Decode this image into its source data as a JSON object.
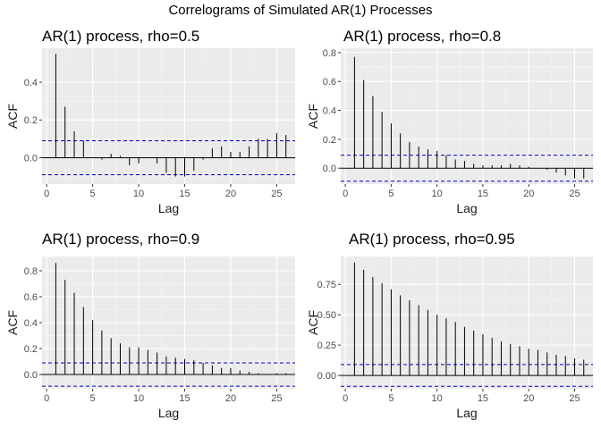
{
  "figure": {
    "title": "Correlograms of Simulated AR(1) Processes"
  },
  "chart_data": [
    {
      "type": "bar",
      "title": "AR(1) process, rho=0.5",
      "xlabel": "Lag",
      "ylabel": "ACF",
      "x": [
        1,
        2,
        3,
        4,
        5,
        6,
        7,
        8,
        9,
        10,
        11,
        12,
        13,
        14,
        15,
        16,
        17,
        18,
        19,
        20,
        21,
        22,
        23,
        24,
        25,
        26
      ],
      "values": [
        0.55,
        0.27,
        0.14,
        0.09,
        0.0,
        -0.01,
        0.02,
        0.01,
        -0.04,
        -0.03,
        0.0,
        -0.03,
        -0.08,
        -0.1,
        -0.1,
        -0.07,
        -0.01,
        0.05,
        0.06,
        0.03,
        0.03,
        0.06,
        0.1,
        0.1,
        0.13,
        0.12
      ],
      "confidence_band": 0.09,
      "xlim": [
        -0.5,
        27
      ],
      "ylim": [
        -0.14,
        0.58
      ],
      "xticks": [
        0,
        5,
        10,
        15,
        20,
        25
      ],
      "yticks": [
        0.0,
        0.2,
        0.4
      ],
      "ytick_labels": [
        "0.0",
        "0.2",
        "0.4"
      ],
      "grid": true
    },
    {
      "type": "bar",
      "title": "AR(1) process, rho=0.8",
      "xlabel": "Lag",
      "ylabel": "ACF",
      "x": [
        1,
        2,
        3,
        4,
        5,
        6,
        7,
        8,
        9,
        10,
        11,
        12,
        13,
        14,
        15,
        16,
        17,
        18,
        19,
        20,
        21,
        22,
        23,
        24,
        25,
        26
      ],
      "values": [
        0.77,
        0.61,
        0.5,
        0.39,
        0.31,
        0.24,
        0.18,
        0.15,
        0.13,
        0.12,
        0.09,
        0.06,
        0.05,
        0.03,
        0.02,
        0.02,
        0.02,
        0.03,
        0.02,
        0.01,
        0.0,
        -0.01,
        -0.03,
        -0.05,
        -0.07,
        -0.07
      ],
      "confidence_band": 0.09,
      "xlim": [
        -0.5,
        27
      ],
      "ylim": [
        -0.11,
        0.83
      ],
      "xticks": [
        0,
        5,
        10,
        15,
        20,
        25
      ],
      "yticks": [
        0.0,
        0.2,
        0.4,
        0.6,
        0.8
      ],
      "ytick_labels": [
        "0.0",
        "0.2",
        "0.4",
        "0.6",
        "0.8"
      ],
      "grid": true
    },
    {
      "type": "bar",
      "title": "AR(1) process, rho=0.9",
      "xlabel": "Lag",
      "ylabel": "ACF",
      "x": [
        1,
        2,
        3,
        4,
        5,
        6,
        7,
        8,
        9,
        10,
        11,
        12,
        13,
        14,
        15,
        16,
        17,
        18,
        19,
        20,
        21,
        22,
        23,
        24,
        25,
        26
      ],
      "values": [
        0.86,
        0.73,
        0.63,
        0.52,
        0.42,
        0.34,
        0.28,
        0.24,
        0.21,
        0.21,
        0.19,
        0.17,
        0.14,
        0.13,
        0.12,
        0.11,
        0.09,
        0.07,
        0.05,
        0.05,
        0.03,
        0.02,
        0.01,
        0.0,
        0.01,
        0.01
      ],
      "confidence_band": 0.09,
      "xlim": [
        -0.5,
        27
      ],
      "ylim": [
        -0.11,
        0.91
      ],
      "xticks": [
        0,
        5,
        10,
        15,
        20,
        25
      ],
      "yticks": [
        0.0,
        0.2,
        0.4,
        0.6,
        0.8
      ],
      "ytick_labels": [
        "0.0",
        "0.2",
        "0.4",
        "0.6",
        "0.8"
      ],
      "grid": true
    },
    {
      "type": "bar",
      "title": "AR(1) process, rho=0.95",
      "xlabel": "Lag",
      "ylabel": "ACF",
      "x": [
        1,
        2,
        3,
        4,
        5,
        6,
        7,
        8,
        9,
        10,
        11,
        12,
        13,
        14,
        15,
        16,
        17,
        18,
        19,
        20,
        21,
        22,
        23,
        24,
        25,
        26
      ],
      "values": [
        0.93,
        0.87,
        0.81,
        0.76,
        0.71,
        0.66,
        0.62,
        0.58,
        0.54,
        0.5,
        0.47,
        0.44,
        0.4,
        0.37,
        0.34,
        0.31,
        0.28,
        0.26,
        0.24,
        0.22,
        0.21,
        0.19,
        0.17,
        0.16,
        0.14,
        0.13
      ],
      "confidence_band": 0.09,
      "xlim": [
        -0.5,
        27
      ],
      "ylim": [
        -0.11,
        0.98
      ],
      "xticks": [
        0,
        5,
        10,
        15,
        20,
        25
      ],
      "yticks": [
        0.0,
        0.25,
        0.5,
        0.75
      ],
      "ytick_labels": [
        "0.00",
        "0.25",
        "0.50",
        "0.75"
      ],
      "grid": true
    }
  ]
}
